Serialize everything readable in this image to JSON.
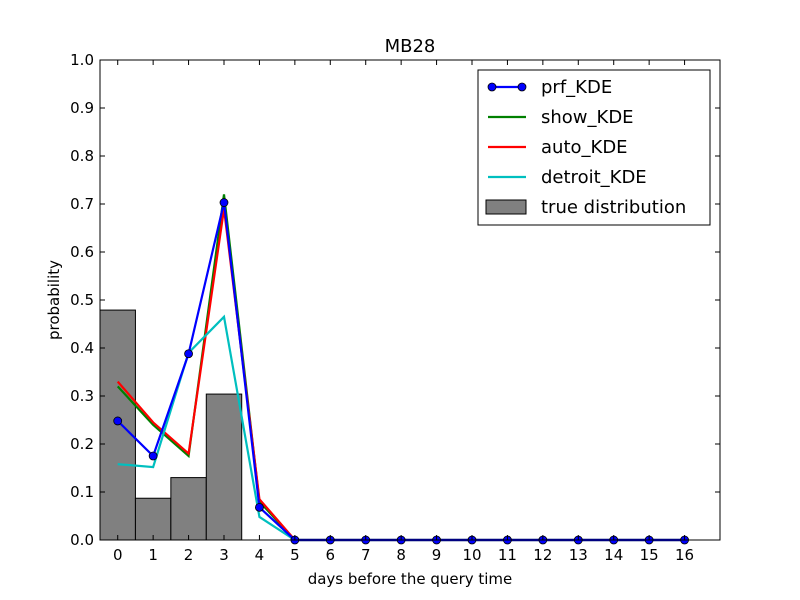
{
  "chart_data": {
    "type": "line",
    "title": "MB28",
    "xlabel": "days before the query time",
    "ylabel": "probability",
    "xlim": [
      -0.5,
      17
    ],
    "ylim": [
      0,
      1
    ],
    "x": [
      0,
      1,
      2,
      3,
      4,
      5,
      6,
      7,
      8,
      9,
      10,
      11,
      12,
      13,
      14,
      15,
      16
    ],
    "xticks": [
      "0",
      "1",
      "2",
      "3",
      "4",
      "5",
      "6",
      "7",
      "8",
      "9",
      "10",
      "11",
      "12",
      "13",
      "14",
      "15",
      "16"
    ],
    "yticks": [
      "0.0",
      "0.1",
      "0.2",
      "0.3",
      "0.4",
      "0.5",
      "0.6",
      "0.7",
      "0.8",
      "0.9",
      "1.0"
    ],
    "grid": false,
    "legend_position": "top-right",
    "series": [
      {
        "name": "prf_KDE",
        "color": "#0000ff",
        "marker": "circle",
        "values": [
          0.248,
          0.175,
          0.388,
          0.703,
          0.068,
          0,
          0,
          0,
          0,
          0,
          0,
          0,
          0,
          0,
          0,
          0,
          0
        ]
      },
      {
        "name": "show_KDE",
        "color": "#008000",
        "marker": "none",
        "values": [
          0.32,
          0.24,
          0.175,
          0.72,
          0.08,
          0,
          0,
          0,
          0,
          0,
          0,
          0,
          0,
          0,
          0,
          0,
          0
        ]
      },
      {
        "name": "auto_KDE",
        "color": "#ff0000",
        "marker": "none",
        "values": [
          0.33,
          0.245,
          0.18,
          0.69,
          0.085,
          0,
          0,
          0,
          0,
          0,
          0,
          0,
          0,
          0,
          0,
          0,
          0
        ]
      },
      {
        "name": "detroit_KDE",
        "color": "#00bfbf",
        "marker": "none",
        "values": [
          0.158,
          0.152,
          0.39,
          0.465,
          0.048,
          0,
          0,
          0,
          0,
          0,
          0,
          0,
          0,
          0,
          0,
          0,
          0
        ]
      }
    ],
    "histogram": {
      "name": "true distribution",
      "color": "#808080",
      "bin_edges": [
        -0.5,
        0.5,
        1.5,
        2.5,
        3.5
      ],
      "values": [
        0.479,
        0.087,
        0.13,
        0.304
      ]
    }
  }
}
